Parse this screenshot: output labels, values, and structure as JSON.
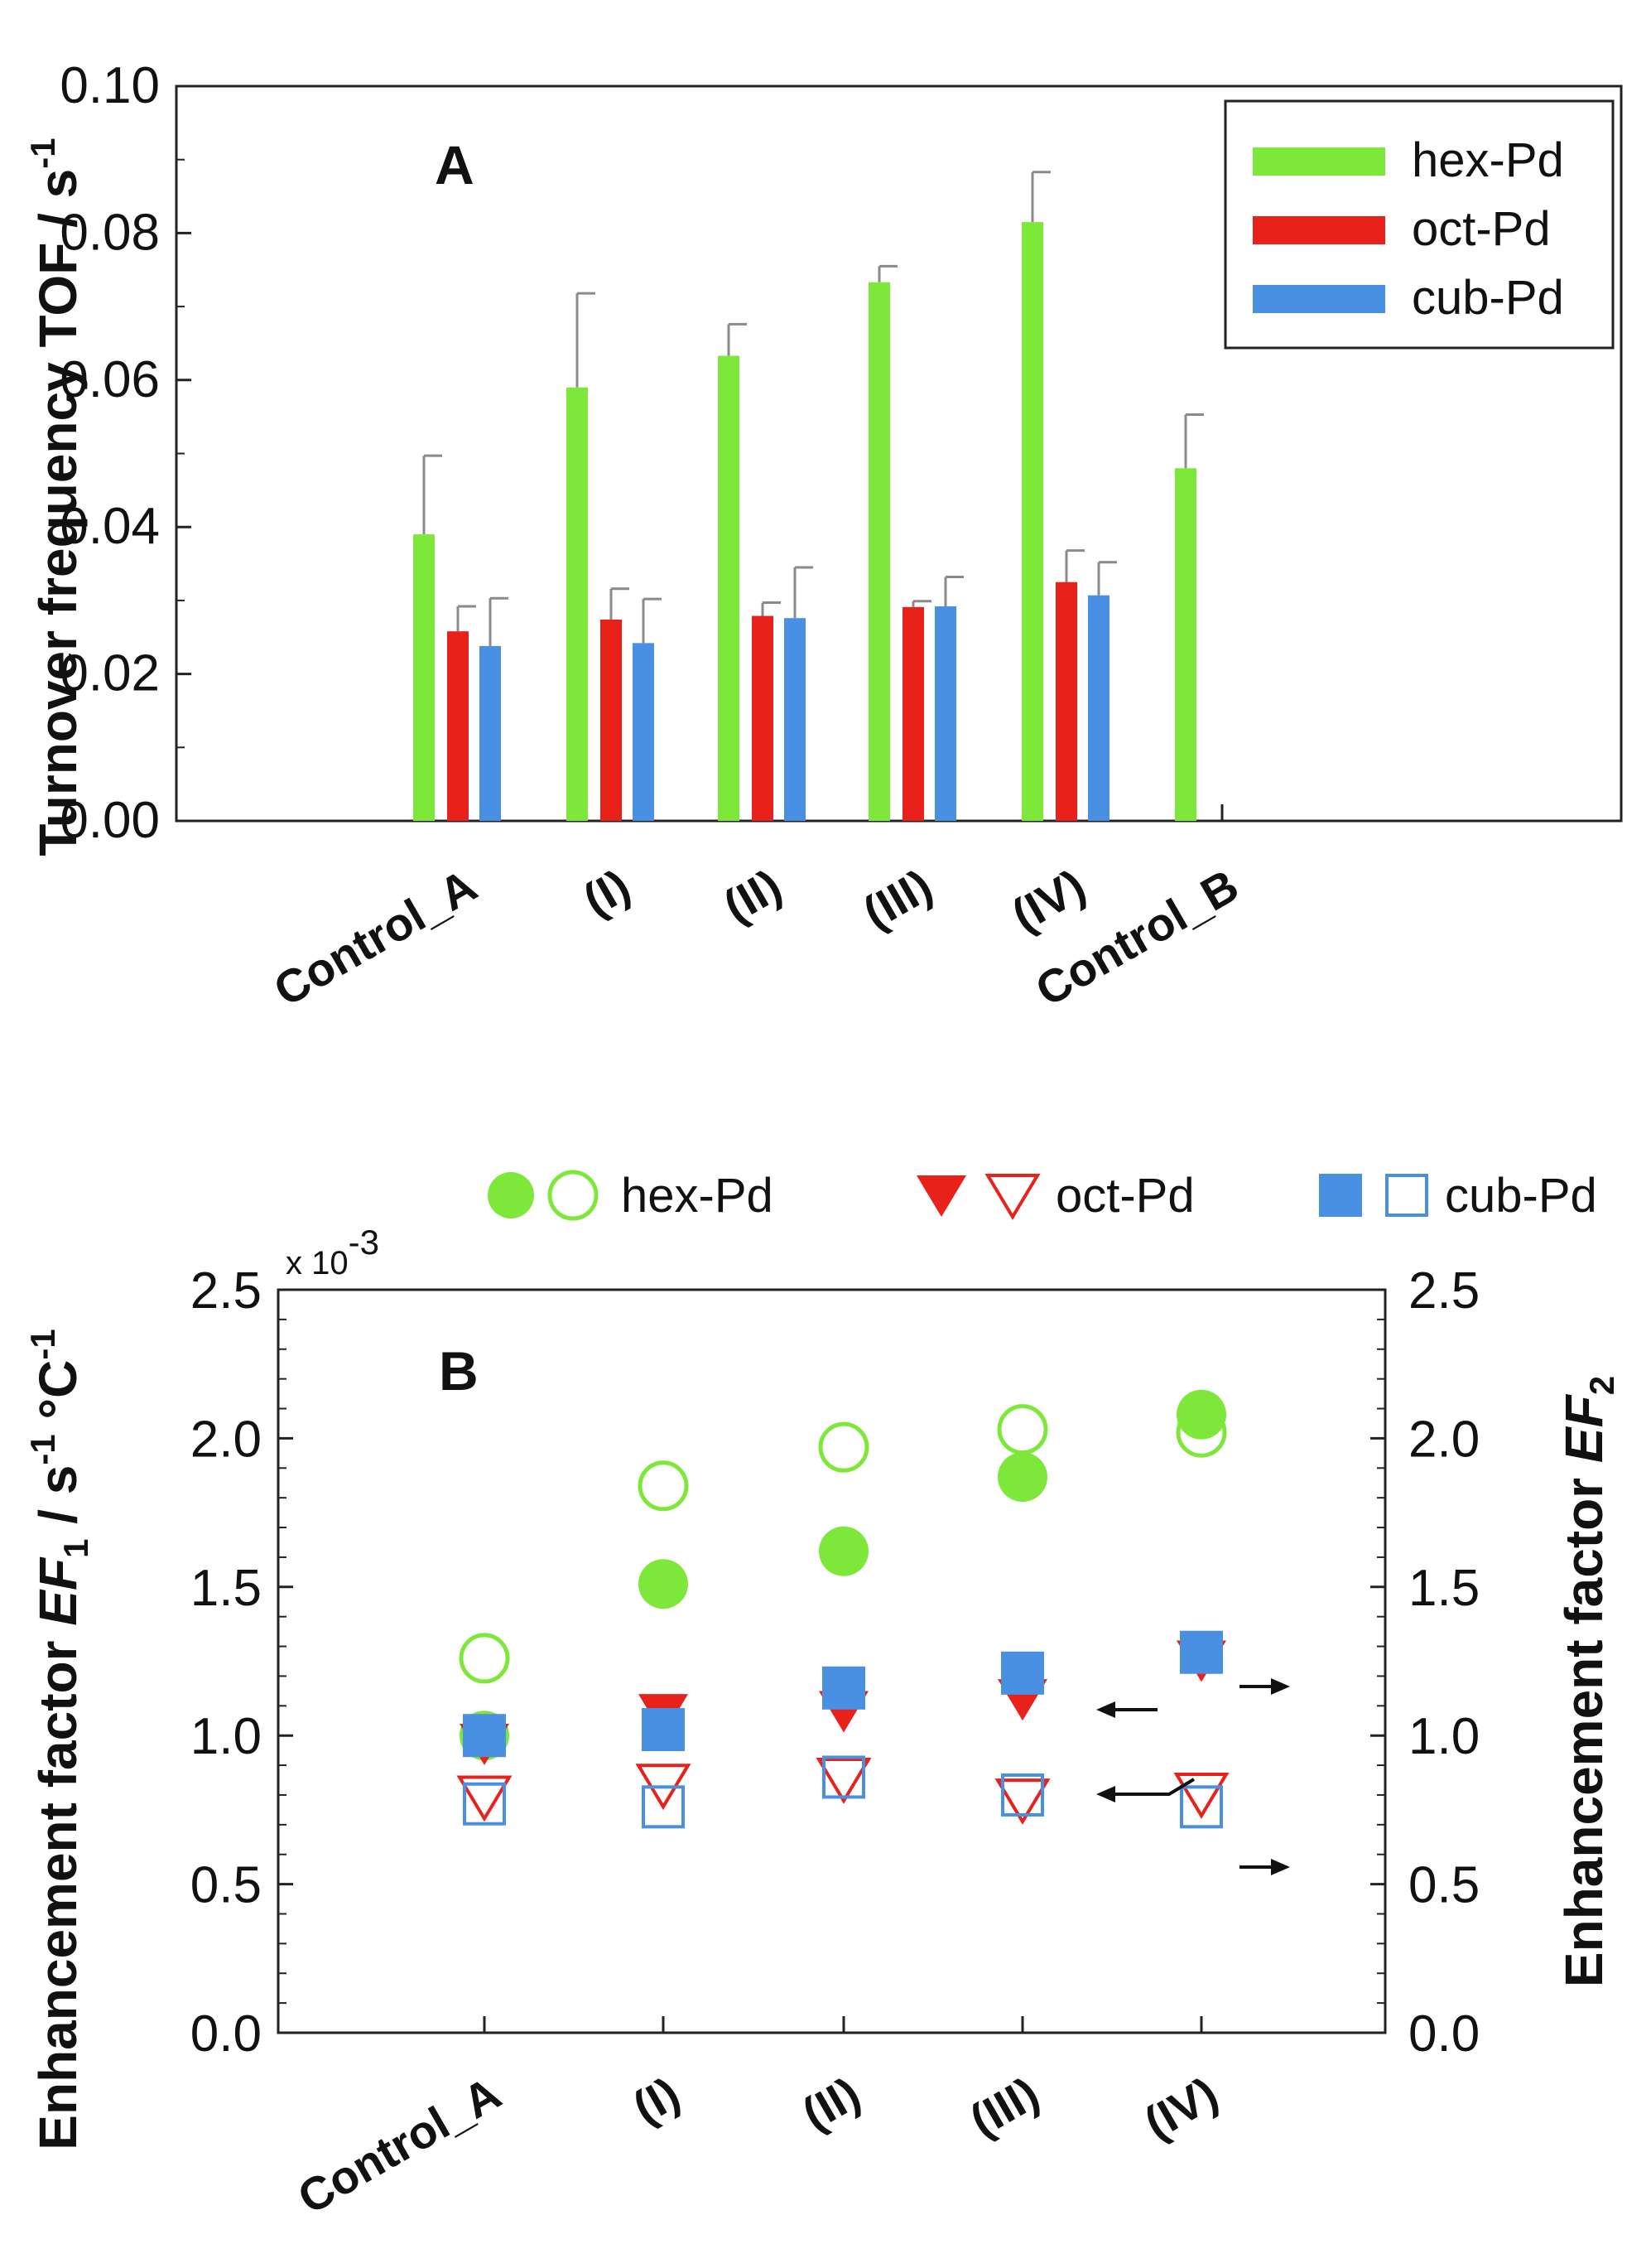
{
  "chart_data": [
    {
      "panel": "A",
      "type": "bar",
      "ylabel": "Turnover frequency TOF / s",
      "ylabel_sup": "-1",
      "yticks": [
        "0.00",
        "0.02",
        "0.04",
        "0.06",
        "0.08",
        "0.10"
      ],
      "ylim": [
        0,
        0.1
      ],
      "categories": [
        "Control_A",
        "(I)",
        "(II)",
        "(III)",
        "(IV)",
        "Control_B"
      ],
      "legend_position": "top-right",
      "series": [
        {
          "name": "hex-Pd",
          "color": "#7ee83a",
          "values": [
            0.039,
            0.059,
            0.0633,
            0.0733,
            0.0815,
            0.048
          ],
          "errors": [
            0.0107,
            0.0128,
            0.0043,
            0.0022,
            0.0068,
            0.0073
          ]
        },
        {
          "name": "oct-Pd",
          "color": "#e8221b",
          "values": [
            0.0258,
            0.0274,
            0.0279,
            0.0291,
            0.0325,
            null
          ],
          "errors": [
            0.0034,
            0.0042,
            0.0018,
            0.0008,
            0.0043,
            null
          ]
        },
        {
          "name": "cub-Pd",
          "color": "#4a90e2",
          "values": [
            0.0238,
            0.0242,
            0.0276,
            0.0292,
            0.0307,
            null
          ],
          "errors": [
            0.0065,
            0.006,
            0.0069,
            0.004,
            0.0045,
            null
          ]
        }
      ]
    },
    {
      "panel": "B",
      "type": "scatter",
      "ylabel_left": "Enhancement factor ",
      "ylabel_left_var": "EF",
      "ylabel_left_sub": "1",
      "ylabel_left_unit": " / s",
      "ylabel_left_sup": "-1",
      "ylabel_left_tail": " °C",
      "ylabel_left_tail_sup": "-1",
      "ylabel_right": "Enhancement factor ",
      "ylabel_right_var": "EF",
      "ylabel_right_sub": "2",
      "multiplier": "x 10",
      "multiplier_exp": "-3",
      "yticks": [
        "0.0",
        "0.5",
        "1.0",
        "1.5",
        "2.0",
        "2.5"
      ],
      "ylim": [
        0,
        2.5
      ],
      "categories": [
        "Control_A",
        "(I)",
        "(II)",
        "(III)",
        "(IV)"
      ],
      "legend_position": "top",
      "series": [
        {
          "name": "hex-Pd",
          "marker": "circle",
          "color": "#7ee83a",
          "EF1_open": [
            1.26,
            1.84,
            1.97,
            2.03,
            2.02
          ],
          "EF2_filled": [
            1.0,
            1.51,
            1.62,
            1.87,
            2.08
          ]
        },
        {
          "name": "oct-Pd",
          "marker": "triangle-down",
          "color": "#e8221b",
          "EF1_open": [
            0.79,
            0.83,
            0.85,
            0.78,
            0.8
          ],
          "EF2_filled": [
            0.97,
            1.07,
            1.08,
            1.12,
            1.25
          ]
        },
        {
          "name": "cub-Pd",
          "marker": "square",
          "color": "#4a90e2",
          "EF1_open": [
            0.77,
            0.76,
            0.86,
            0.8,
            0.76
          ],
          "EF2_filled": [
            1.0,
            1.02,
            1.16,
            1.21,
            1.28
          ]
        }
      ]
    }
  ]
}
